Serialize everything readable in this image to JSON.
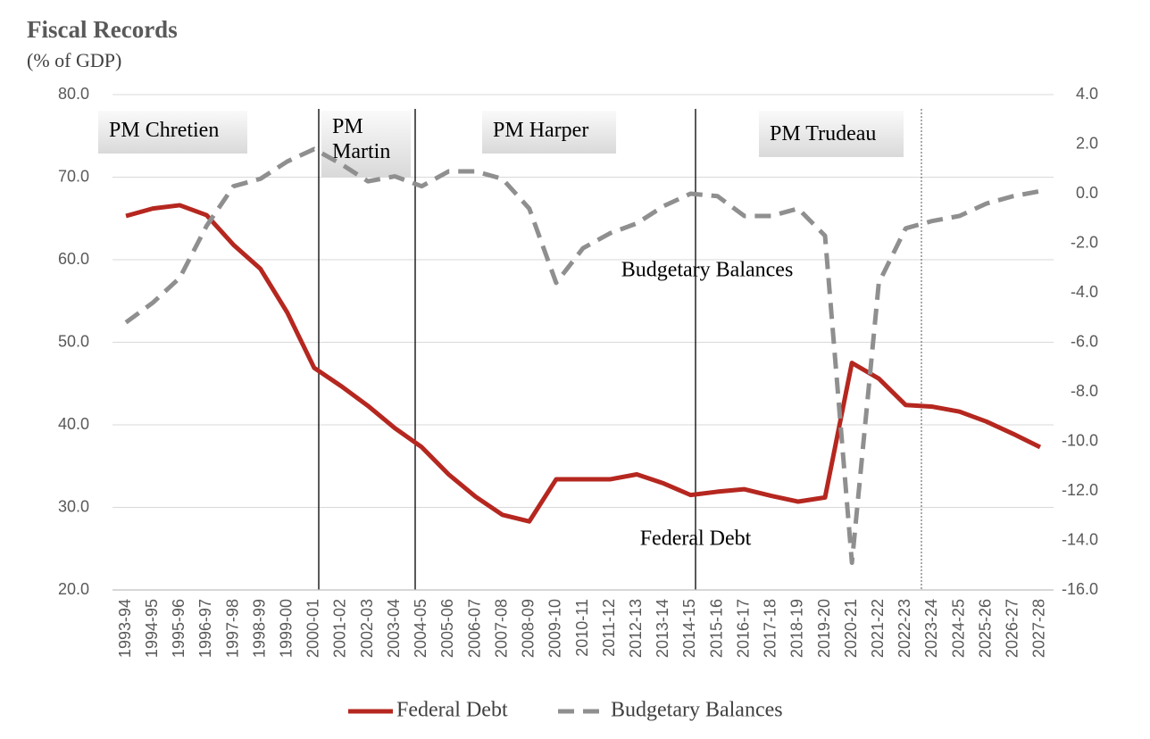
{
  "chart_data": {
    "type": "line",
    "title": "Fiscal Records",
    "subtitle": "(% of GDP)",
    "categories": [
      "1993-94",
      "1994-95",
      "1995-96",
      "1996-97",
      "1997-98",
      "1998-99",
      "1999-00",
      "2000-01",
      "2001-02",
      "2002-03",
      "2003-04",
      "2004-05",
      "2005-06",
      "2006-07",
      "2007-08",
      "2008-09",
      "2009-10",
      "2010-11",
      "2011-12",
      "2012-13",
      "2013-14",
      "2014-15",
      "2015-16",
      "2016-17",
      "2017-18",
      "2018-19",
      "2019-20",
      "2020-21",
      "2021-22",
      "2022-23",
      "2023-24",
      "2024-25",
      "2025-26",
      "2026-27",
      "2027-28"
    ],
    "series": [
      {
        "name": "Federal Debt",
        "color": "#b5271f",
        "values": [
          65.3,
          66.2,
          66.6,
          65.4,
          61.8,
          58.9,
          53.6,
          46.9,
          44.7,
          42.3,
          39.6,
          37.3,
          34.0,
          31.3,
          29.1,
          28.3,
          33.4,
          33.4,
          33.4,
          34.0,
          32.9,
          31.5,
          31.9,
          32.2,
          31.4,
          30.7,
          31.2,
          47.5,
          45.6,
          42.4,
          42.2,
          41.6,
          40.4,
          38.9,
          37.3
        ]
      },
      {
        "name": "Budgetary Balances",
        "color": "#8f8f8f",
        "axis": "y2",
        "dashed": true,
        "values": [
          -5.2,
          -4.4,
          -3.4,
          -1.3,
          0.3,
          0.6,
          1.3,
          1.8,
          1.2,
          0.5,
          0.7,
          0.3,
          0.9,
          0.9,
          0.6,
          -0.6,
          -3.6,
          -2.2,
          -1.6,
          -1.2,
          -0.5,
          0.0,
          -0.1,
          -0.9,
          -0.9,
          -0.6,
          -1.7,
          -14.9,
          -3.6,
          -1.4,
          -1.1,
          -0.9,
          -0.4,
          -0.1,
          0.1
        ]
      }
    ],
    "ylim": [
      20,
      80
    ],
    "yticks": [
      {
        "value": 20,
        "label": "20.0"
      },
      {
        "value": 30,
        "label": "30.0"
      },
      {
        "value": 40,
        "label": "40.0"
      },
      {
        "value": 50,
        "label": "50.0"
      },
      {
        "value": 60,
        "label": "60.0"
      },
      {
        "value": 70,
        "label": "70.0"
      },
      {
        "value": 80,
        "label": "80.0"
      }
    ],
    "y2lim": [
      -16,
      4
    ],
    "y2ticks": [
      {
        "value": -16,
        "label": "-16.0"
      },
      {
        "value": -14,
        "label": "-14.0"
      },
      {
        "value": -12,
        "label": "-12.0"
      },
      {
        "value": -10,
        "label": "-10.0"
      },
      {
        "value": -8,
        "label": "-8.0"
      },
      {
        "value": -6,
        "label": "-6.0"
      },
      {
        "value": -4,
        "label": "-4.0"
      },
      {
        "value": -2,
        "label": "-2.0"
      },
      {
        "value": 0,
        "label": "0.0"
      },
      {
        "value": 2,
        "label": "2.0"
      },
      {
        "value": 4,
        "label": "4.0"
      }
    ],
    "grid": true,
    "legend": "bottom",
    "pm_labels": [
      "PM Chretien",
      "PM Martin",
      "PM Harper",
      "PM Trudeau"
    ],
    "annotations": [
      "Budgetary Balances",
      "Federal Debt"
    ]
  }
}
